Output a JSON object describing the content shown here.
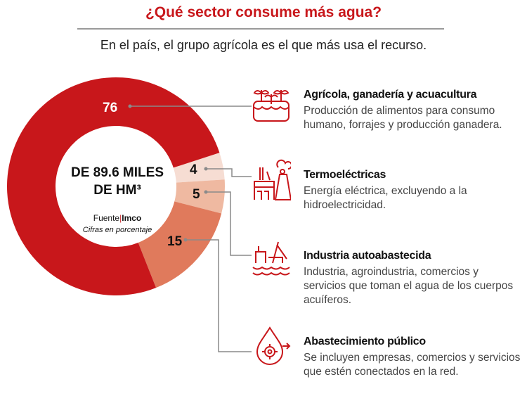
{
  "title": "¿Qué sector consume más agua?",
  "subtitle": "En el país, el grupo agrícola es el que más usa el recurso.",
  "center": {
    "line1": "DE 89.6 MILES",
    "line2": "DE HM³",
    "source_label": "Fuente",
    "source": "Imco",
    "note": "Cifras en porcentaje"
  },
  "chart_data": {
    "type": "pie",
    "subtype": "donut",
    "start_angle_deg": 72,
    "categories": [
      "Termoeléctricas",
      "Industria autoabastecida",
      "Abastecimiento público",
      "Agrícola, ganadería y acuacultura"
    ],
    "values": [
      4,
      5,
      15,
      76
    ],
    "labels": [
      "4",
      "5",
      "15",
      "76"
    ],
    "colors": [
      "#f6ddd3",
      "#efb9a1",
      "#e07a5c",
      "#c8171b"
    ],
    "label_colors": [
      "#111111",
      "#111111",
      "#111111",
      "#ffffff"
    ]
  },
  "items": [
    {
      "title": "Agrícola, ganadería y acuacultura",
      "desc": "Producción de alimentos para consumo humano, forrajes y producción ganadera.",
      "icon": "plants-icon"
    },
    {
      "title": "Termoeléctricas",
      "desc": "Energía eléctrica, excluyendo a la hidroelectricidad.",
      "icon": "power-plant-icon"
    },
    {
      "title": "Industria autoabastecida",
      "desc": "Industria, agroindustria, comercios y servicios que toman el agua de los cuerpos acuíferos.",
      "icon": "industry-water-icon"
    },
    {
      "title": "Abastecimiento público",
      "desc": "Se incluyen empresas, comercios y servicios que estén conectados en la red.",
      "icon": "water-drop-gear-icon"
    }
  ]
}
